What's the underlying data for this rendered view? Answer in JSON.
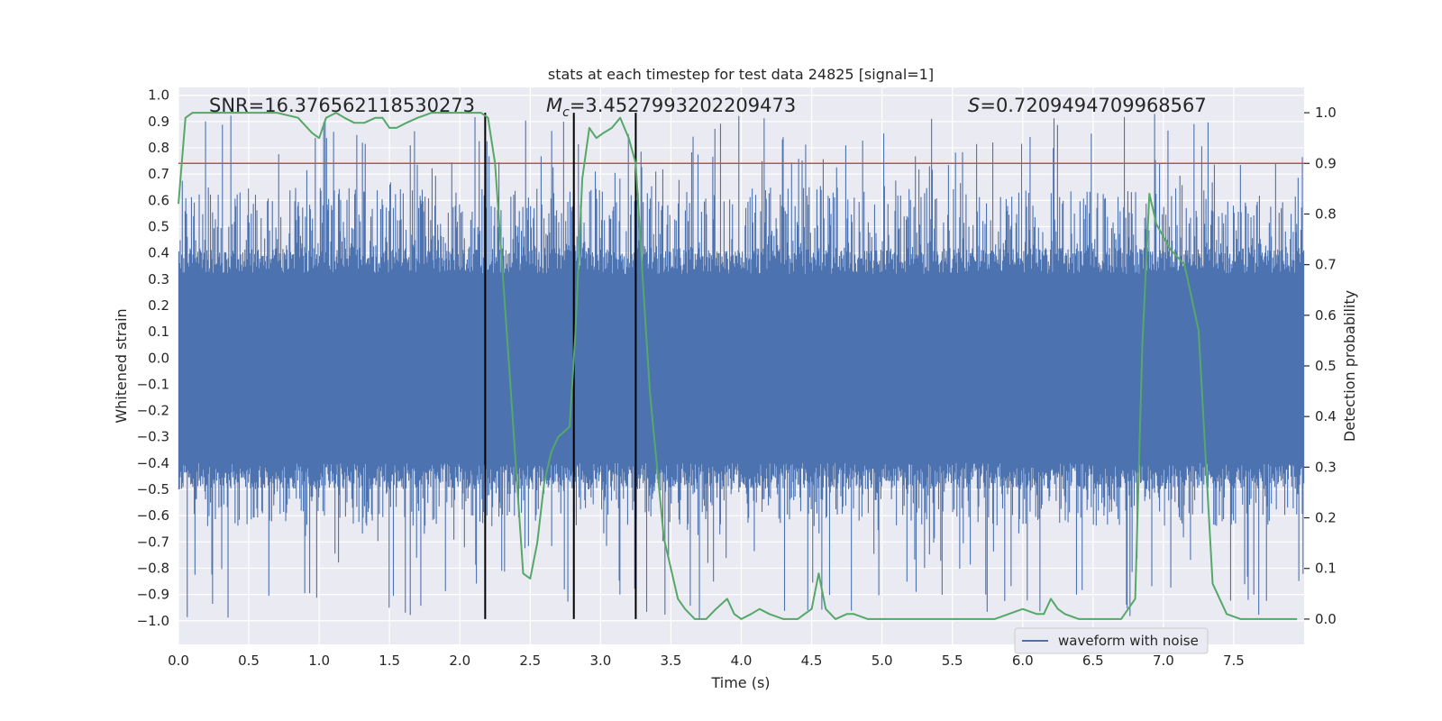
{
  "chart_data": {
    "type": "line",
    "title": "stats at each timestep for test data 24825 [signal=1]",
    "xlabel": "Time (s)",
    "ylabel_left": "Whitened strain",
    "ylabel_right": "Detection probability",
    "xlim": [
      0.0,
      8.0
    ],
    "ylim_left": [
      -1.09,
      1.03
    ],
    "ylim_right": [
      -0.05,
      1.05
    ],
    "xticks": [
      0.0,
      0.5,
      1.0,
      1.5,
      2.0,
      2.5,
      3.0,
      3.5,
      4.0,
      4.5,
      5.0,
      5.5,
      6.0,
      6.5,
      7.0,
      7.5
    ],
    "xtick_labels": [
      "0.0",
      "0.5",
      "1.0",
      "1.5",
      "2.0",
      "2.5",
      "3.0",
      "3.5",
      "4.0",
      "4.5",
      "5.0",
      "5.5",
      "6.0",
      "6.5",
      "7.0",
      "7.5"
    ],
    "yticks_left": [
      1.0,
      0.9,
      0.8,
      0.7,
      0.6,
      0.5,
      0.4,
      0.3,
      0.2,
      0.1,
      0.0,
      -0.1,
      -0.2,
      -0.3,
      -0.4,
      -0.5,
      -0.6,
      -0.7,
      -0.8,
      -0.9,
      -1.0
    ],
    "ytick_labels_left": [
      "1.0",
      "0.9",
      "0.8",
      "0.7",
      "0.6",
      "0.5",
      "0.4",
      "0.3",
      "0.2",
      "0.1",
      "0.0",
      "−0.1",
      "−0.2",
      "−0.3",
      "−0.4",
      "−0.5",
      "−0.6",
      "−0.7",
      "−0.8",
      "−0.9",
      "−1.0"
    ],
    "yticks_right": [
      1.0,
      0.9,
      0.8,
      0.7,
      0.6,
      0.5,
      0.4,
      0.3,
      0.2,
      0.1,
      0.0
    ],
    "ytick_labels_right": [
      "1.0",
      "0.9",
      "0.8",
      "0.7",
      "0.6",
      "0.5",
      "0.4",
      "0.3",
      "0.2",
      "0.1",
      "0.0"
    ],
    "annotations": {
      "snr": "SNR=16.376562118530273",
      "mc_symbol": "M",
      "mc_sub": "c",
      "mc_value": "=3.4527993202209473",
      "s_symbol": "S",
      "s_value": "=0.7209494709968567"
    },
    "threshold": {
      "value": 0.9,
      "axis": "right",
      "color": "#c44e52"
    },
    "vlines": {
      "x": [
        2.18,
        2.81,
        3.25
      ],
      "ymin": 0.0,
      "ymax": 1.0,
      "axis": "right",
      "color": "#000000"
    },
    "series": [
      {
        "name": "waveform with noise",
        "axis": "left",
        "color": "#4c72b0",
        "envelope": {
          "seed": 24825,
          "samples": 1600,
          "dense_band": [
            -0.4,
            0.32
          ],
          "spike_max": 0.93,
          "spike_min": -1.0
        }
      },
      {
        "name": "detection probability",
        "axis": "right",
        "color": "#55a868",
        "x": [
          0.0,
          0.05,
          0.1,
          0.2,
          0.3,
          0.5,
          0.7,
          0.85,
          0.95,
          1.0,
          1.05,
          1.12,
          1.18,
          1.25,
          1.32,
          1.4,
          1.45,
          1.5,
          1.55,
          1.62,
          1.7,
          1.8,
          1.9,
          2.0,
          2.1,
          2.15,
          2.2,
          2.25,
          2.35,
          2.45,
          2.5,
          2.55,
          2.6,
          2.65,
          2.7,
          2.78,
          2.82,
          2.87,
          2.92,
          2.97,
          3.02,
          3.08,
          3.14,
          3.2,
          3.25,
          3.3,
          3.35,
          3.45,
          3.55,
          3.6,
          3.67,
          3.75,
          3.82,
          3.9,
          3.95,
          4.0,
          4.07,
          4.13,
          4.2,
          4.3,
          4.4,
          4.5,
          4.55,
          4.6,
          4.67,
          4.75,
          4.8,
          4.9,
          5.0,
          5.2,
          5.5,
          5.8,
          6.0,
          6.1,
          6.15,
          6.2,
          6.25,
          6.3,
          6.4,
          6.5,
          6.6,
          6.7,
          6.8,
          6.85,
          6.9,
          6.95,
          7.05,
          7.15,
          7.25,
          7.35,
          7.45,
          7.55,
          7.7,
          7.95
        ],
        "values": [
          0.82,
          0.99,
          1.0,
          1.0,
          1.0,
          1.0,
          1.0,
          0.99,
          0.96,
          0.95,
          0.99,
          1.0,
          0.99,
          0.98,
          0.98,
          0.99,
          0.99,
          0.97,
          0.97,
          0.98,
          0.99,
          1.0,
          1.0,
          1.0,
          1.0,
          1.0,
          0.99,
          0.9,
          0.5,
          0.09,
          0.08,
          0.15,
          0.27,
          0.33,
          0.36,
          0.38,
          0.56,
          0.87,
          0.97,
          0.95,
          0.96,
          0.97,
          0.99,
          0.95,
          0.9,
          0.67,
          0.45,
          0.16,
          0.04,
          0.02,
          0.0,
          0.0,
          0.02,
          0.04,
          0.01,
          0.0,
          0.01,
          0.02,
          0.01,
          0.0,
          0.0,
          0.02,
          0.09,
          0.02,
          0.0,
          0.01,
          0.01,
          0.0,
          0.0,
          0.0,
          0.0,
          0.0,
          0.02,
          0.01,
          0.01,
          0.04,
          0.02,
          0.01,
          0.0,
          0.0,
          0.0,
          0.0,
          0.04,
          0.54,
          0.84,
          0.78,
          0.73,
          0.7,
          0.57,
          0.07,
          0.01,
          0.0,
          0.0,
          0.0
        ]
      }
    ],
    "legend": {
      "location": "lower-right",
      "entries": [
        "waveform with noise"
      ]
    }
  }
}
